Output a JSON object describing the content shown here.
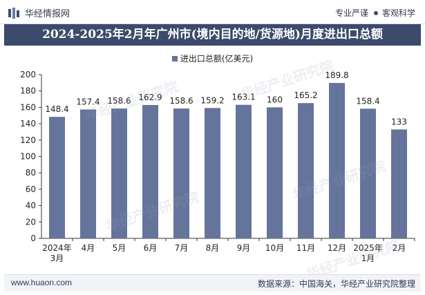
{
  "header": {
    "brand": "华经情报网",
    "slogan_left": "专业严谨",
    "slogan_right": "客观科学"
  },
  "title": "2024-2025年2月年广州市(境内目的地/货源地)月度进出口总额",
  "footer": {
    "url": "www.huaon.com",
    "source": "数据来源：中国海关，华经产业研究院整理"
  },
  "watermark": "华经产业研究院",
  "colors": {
    "bar": "#65749b",
    "title_bg": "#3c4a6b"
  },
  "chart_data": {
    "type": "bar",
    "title": "2024-2025年2月年广州市(境内目的地/货源地)月度进出口总额",
    "categories": [
      "2024年\n3月",
      "4月",
      "5月",
      "6月",
      "7月",
      "8月",
      "9月",
      "10月",
      "11月",
      "12月",
      "2025年\n1月",
      "2月"
    ],
    "series": [
      {
        "name": "进出口总额(亿美元)",
        "values": [
          148.4,
          157.4,
          158.6,
          162.9,
          158.6,
          159.2,
          163.1,
          160,
          165.2,
          189.8,
          158.4,
          133
        ]
      }
    ],
    "value_labels": [
      "148.4",
      "157.4",
      "158.6",
      "162.9",
      "158.6",
      "159.2",
      "163.1",
      "160",
      "165.2",
      "189.8",
      "158.4",
      "133"
    ],
    "ylim": [
      0,
      200
    ],
    "yticks": [
      0,
      20,
      40,
      60,
      80,
      100,
      120,
      140,
      160,
      180,
      200
    ],
    "legend": "top-center",
    "grid": false
  }
}
